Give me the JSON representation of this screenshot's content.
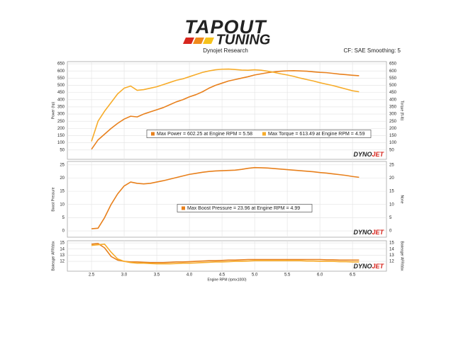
{
  "header": {
    "logo_top": "TAPOUT",
    "logo_bottom": "TUNING",
    "subtitle": "Dynojet Research",
    "info": "CF: SAE Smoothing: 5"
  },
  "watermark": [
    "DYNO",
    "JET"
  ],
  "chart_data": [
    {
      "type": "line",
      "ylabel": "Power (hp)",
      "y2label": "Torque (ft-lb)",
      "x": [
        2.5,
        2.6,
        2.7,
        2.8,
        2.9,
        3.0,
        3.1,
        3.2,
        3.3,
        3.4,
        3.5,
        3.6,
        3.7,
        3.8,
        3.9,
        4.0,
        4.1,
        4.2,
        4.3,
        4.4,
        4.5,
        4.6,
        4.7,
        4.8,
        4.9,
        5.0,
        5.1,
        5.2,
        5.3,
        5.4,
        5.5,
        5.6,
        5.7,
        5.8,
        5.9,
        6.0,
        6.1,
        6.2,
        6.3,
        6.4,
        6.5,
        6.6
      ],
      "xlim": [
        2.13,
        7.02
      ],
      "ylim": [
        -15,
        665
      ],
      "yticks": [
        50,
        100,
        150,
        200,
        250,
        300,
        350,
        400,
        450,
        500,
        550,
        600,
        650
      ],
      "y2lim": [
        -15,
        665
      ],
      "y2ticks": [
        50,
        100,
        150,
        200,
        250,
        300,
        350,
        400,
        450,
        500,
        550,
        600,
        650
      ],
      "grid": true,
      "series": [
        {
          "color": "#e8801c",
          "axis": "y",
          "values": [
            55,
            120,
            160,
            200,
            235,
            265,
            285,
            280,
            300,
            315,
            330,
            345,
            365,
            385,
            400,
            420,
            435,
            455,
            480,
            500,
            515,
            530,
            540,
            550,
            560,
            572,
            580,
            588,
            594,
            598,
            601,
            602,
            600,
            598,
            594,
            590,
            588,
            583,
            578,
            574,
            570,
            567
          ]
        },
        {
          "color": "#f7ac2a",
          "axis": "y2",
          "values": [
            110,
            250,
            320,
            380,
            440,
            480,
            495,
            465,
            470,
            480,
            490,
            505,
            520,
            535,
            545,
            560,
            575,
            590,
            600,
            608,
            612,
            613,
            610,
            606,
            605,
            608,
            605,
            598,
            590,
            580,
            572,
            562,
            550,
            540,
            530,
            518,
            508,
            498,
            486,
            474,
            462,
            455
          ]
        }
      ],
      "notes": [
        {
          "text": "Max Power = 602.25 at Engine RPM = 5.58",
          "color": "#e8801c"
        },
        {
          "text": "Max Torque = 613.49 at Engine RPM = 4.59",
          "color": "#f7ac2a"
        }
      ]
    },
    {
      "type": "line",
      "ylabel": "Boost Pressure",
      "y2label": "None",
      "x": [
        2.5,
        2.6,
        2.7,
        2.8,
        2.9,
        3.0,
        3.1,
        3.2,
        3.3,
        3.4,
        3.5,
        3.6,
        3.7,
        3.8,
        3.9,
        4.0,
        4.1,
        4.2,
        4.3,
        4.4,
        4.5,
        4.6,
        4.7,
        4.8,
        4.9,
        5.0,
        5.1,
        5.2,
        5.3,
        5.4,
        5.5,
        5.6,
        5.7,
        5.8,
        5.9,
        6.0,
        6.1,
        6.2,
        6.3,
        6.4,
        6.5,
        6.6
      ],
      "xlim": [
        2.13,
        7.02
      ],
      "ylim": [
        -2.4,
        26.3
      ],
      "yticks": [
        0,
        5,
        10,
        15,
        20,
        25
      ],
      "y2lim": [
        -2.4,
        26.3
      ],
      "y2ticks": [
        0,
        5,
        10,
        15,
        20,
        25
      ],
      "grid": true,
      "series": [
        {
          "color": "#e8801c",
          "axis": "y",
          "values": [
            0.8,
            1,
            5,
            10,
            14,
            17,
            18.5,
            18,
            17.8,
            18,
            18.5,
            19,
            19.6,
            20.2,
            20.8,
            21.4,
            21.8,
            22.2,
            22.5,
            22.7,
            22.8,
            22.9,
            23,
            23.3,
            23.7,
            23.96,
            23.9,
            23.8,
            23.6,
            23.4,
            23.2,
            23,
            22.8,
            22.6,
            22.4,
            22.1,
            21.9,
            21.6,
            21.3,
            21,
            20.6,
            20.3
          ]
        }
      ],
      "notes": [
        {
          "text": "Max Boost Pressure = 23.96 at Engine RPM = 4.99",
          "color": "#e8801c"
        }
      ]
    },
    {
      "type": "line",
      "ylabel": "Bakeager AFR/bbx",
      "y2label": "Bakeager AFR/bbx",
      "xlabel": "Engine RPM (rpmx1000)",
      "x": [
        2.5,
        2.6,
        2.7,
        2.8,
        2.9,
        3.0,
        3.1,
        3.2,
        3.3,
        3.4,
        3.5,
        3.6,
        3.7,
        3.8,
        3.9,
        4.0,
        4.1,
        4.2,
        4.3,
        4.4,
        4.5,
        4.6,
        4.7,
        4.8,
        4.9,
        5.0,
        5.1,
        5.2,
        5.3,
        5.4,
        5.5,
        5.6,
        5.7,
        5.8,
        5.9,
        6.0,
        6.1,
        6.2,
        6.3,
        6.4,
        6.5,
        6.6
      ],
      "xlim": [
        2.13,
        7.02
      ],
      "xticks": [
        2.5,
        {
          "value": 3,
          "label": "3.0"
        },
        3.5,
        {
          "value": 4,
          "label": "4.0"
        },
        4.5,
        {
          "value": 5,
          "label": "5.0"
        },
        5.5,
        {
          "value": 6,
          "label": "6.0"
        },
        6.5
      ],
      "ylim": [
        10.4,
        15.35
      ],
      "yticks": [
        12,
        13,
        14,
        15
      ],
      "y2lim": [
        10.4,
        15.35
      ],
      "y2ticks": [
        12,
        13,
        14,
        15
      ],
      "grid": true,
      "series": [
        {
          "color": "#e8801c",
          "axis": "y",
          "values": [
            14.8,
            14.9,
            14.2,
            12.8,
            12.2,
            12.0,
            11.9,
            11.9,
            11.85,
            11.8,
            11.8,
            11.8,
            11.85,
            11.9,
            11.9,
            11.95,
            12.0,
            12.05,
            12.1,
            12.1,
            12.15,
            12.2,
            12.2,
            12.25,
            12.3,
            12.3,
            12.3,
            12.3,
            12.3,
            12.3,
            12.3,
            12.3,
            12.3,
            12.3,
            12.3,
            12.3,
            12.25,
            12.25,
            12.2,
            12.2,
            12.2,
            12.2
          ]
        },
        {
          "color": "#f7ac2a",
          "axis": "y",
          "values": [
            14.6,
            14.7,
            14.8,
            13.5,
            12.4,
            12.0,
            11.8,
            11.7,
            11.7,
            11.65,
            11.6,
            11.6,
            11.6,
            11.65,
            11.7,
            11.7,
            11.75,
            11.8,
            11.85,
            11.9,
            11.9,
            11.95,
            12.0,
            12.0,
            12.05,
            12.1,
            12.1,
            12.1,
            12.1,
            12.1,
            12.1,
            12.1,
            12.1,
            12.05,
            12.05,
            12.0,
            12.0,
            12.0,
            11.95,
            11.95,
            11.9,
            11.9
          ]
        }
      ],
      "notes": []
    }
  ]
}
